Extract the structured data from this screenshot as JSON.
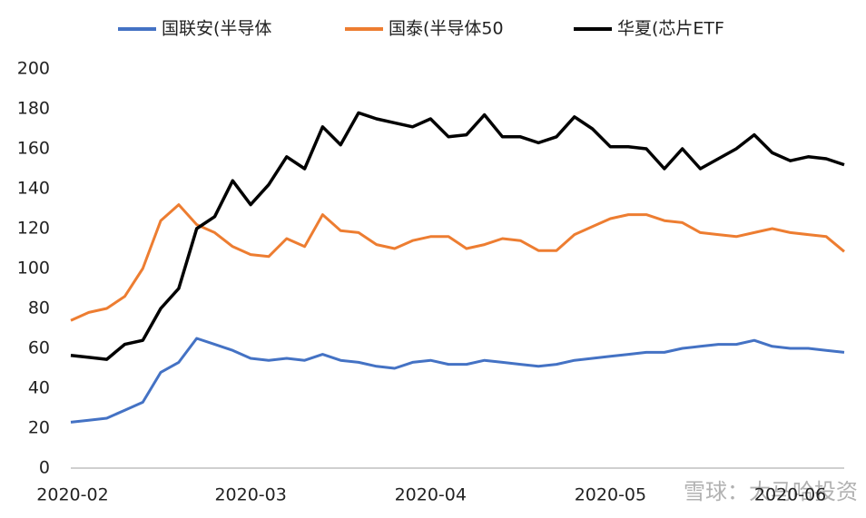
{
  "chart_data": {
    "type": "line",
    "categories": [
      "2020-02",
      null,
      null,
      null,
      null,
      null,
      null,
      null,
      null,
      null,
      "2020-03",
      null,
      null,
      null,
      null,
      null,
      null,
      null,
      null,
      null,
      "2020-04",
      null,
      null,
      null,
      null,
      null,
      null,
      null,
      null,
      null,
      "2020-05",
      null,
      null,
      null,
      null,
      null,
      null,
      null,
      null,
      null,
      "2020-06",
      null,
      null,
      null
    ],
    "series": [
      {
        "name": "国联安(半导体",
        "color": "#4472c4",
        "values": [
          23,
          24,
          25,
          29,
          33,
          48,
          53,
          65,
          62,
          59,
          55,
          54,
          55,
          54,
          57,
          54,
          53,
          51,
          50,
          53,
          54,
          52,
          52,
          54,
          53,
          52,
          51,
          52,
          54,
          55,
          56,
          57,
          58,
          58,
          60,
          61,
          62,
          62,
          64,
          61,
          60,
          60,
          59,
          58
        ]
      },
      {
        "name": "国泰(半导体50",
        "color": "#ed7d31",
        "values": [
          74,
          78,
          80,
          86,
          100,
          124,
          132,
          122,
          118,
          111,
          107,
          106,
          115,
          111,
          127,
          119,
          118,
          112,
          110,
          114,
          116,
          116,
          110,
          112,
          115,
          114,
          109,
          109,
          117,
          121,
          125,
          127,
          127,
          124,
          123,
          118,
          117,
          116,
          118,
          120,
          118,
          117,
          116,
          108.5
        ]
      },
      {
        "name": "华夏(芯片ETF",
        "color": "#000000",
        "values": [
          56.5,
          55.5,
          54.5,
          62,
          64,
          80,
          90,
          120,
          126,
          144,
          132,
          142,
          156,
          150,
          171,
          162,
          178,
          175,
          173,
          171,
          175,
          166,
          167,
          177,
          166,
          166,
          163,
          166,
          176,
          170,
          161,
          161,
          160,
          150,
          160,
          150,
          155,
          160,
          167,
          158,
          154,
          156,
          155,
          152
        ]
      }
    ],
    "ylim": [
      0,
      200
    ],
    "yticks": [
      0,
      20,
      40,
      60,
      80,
      100,
      120,
      140,
      160,
      180,
      200
    ],
    "grid": false,
    "legend": "top",
    "watermark": "雪球：大马哈投资"
  }
}
